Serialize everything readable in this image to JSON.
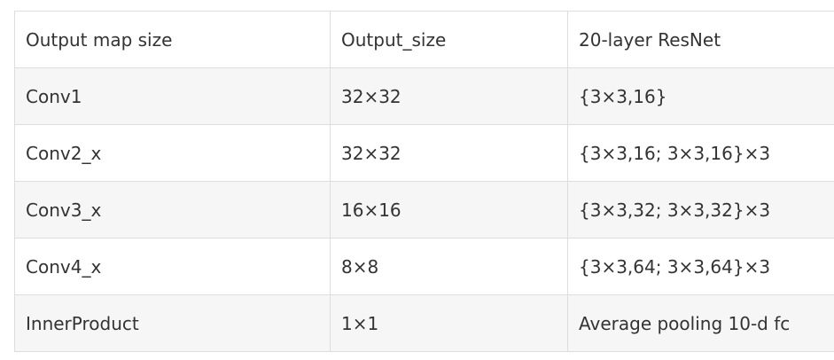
{
  "table": {
    "headers": [
      "Output map size",
      "Output_size",
      "20-layer ResNet"
    ],
    "rows": [
      [
        "Conv1",
        "32×32",
        "{3×3,16}"
      ],
      [
        "Conv2_x",
        "32×32",
        "{3×3,16; 3×3,16}×3"
      ],
      [
        "Conv3_x",
        "16×16",
        "{3×3,32; 3×3,32}×3"
      ],
      [
        "Conv4_x",
        "8×8",
        "{3×3,64; 3×3,64}×3"
      ],
      [
        "InnerProduct",
        "1×1",
        "Average pooling 10-d fc"
      ]
    ]
  }
}
